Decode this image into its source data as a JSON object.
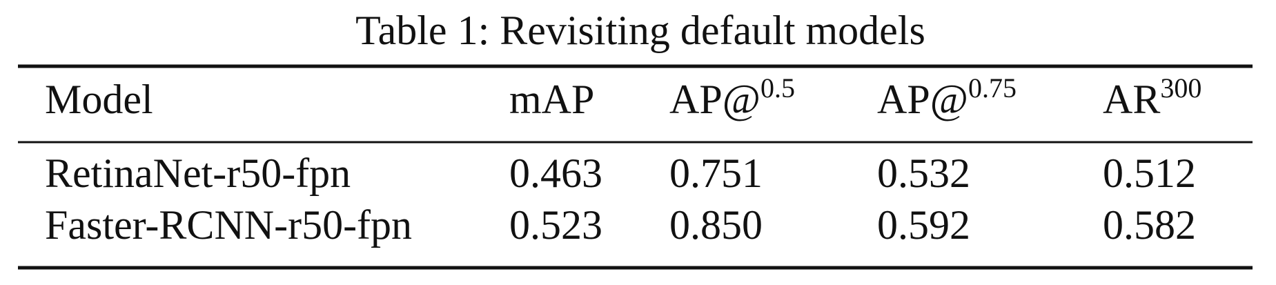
{
  "caption": "Table 1: Revisiting default models",
  "table": {
    "header": [
      {
        "text": "Model"
      },
      {
        "text": "mAP"
      },
      {
        "text": "AP@",
        "sup": "0.5"
      },
      {
        "text": "AP@",
        "sup": "0.75"
      },
      {
        "text": "AR",
        "sup": "300"
      }
    ],
    "rows": [
      [
        "RetinaNet-r50-fpn",
        "0.463",
        "0.751",
        "0.532",
        "0.512"
      ],
      [
        "Faster-RCNN-r50-fpn",
        "0.523",
        "0.850",
        "0.592",
        "0.582"
      ]
    ]
  }
}
